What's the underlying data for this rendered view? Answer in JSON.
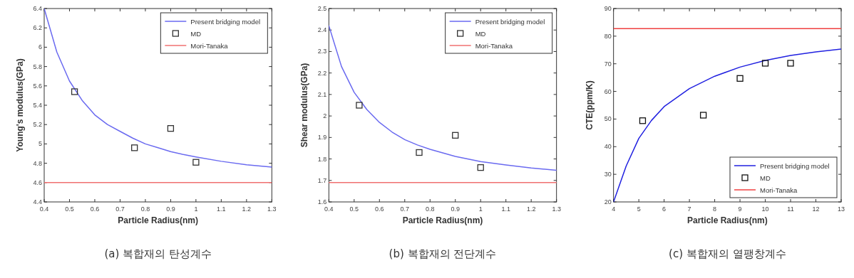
{
  "chart_data": [
    {
      "type": "line",
      "title": "(a) 복합재의 탄성계수",
      "xlabel": "Particle Radius(nm)",
      "ylabel": "Young's modulus(GPa)",
      "xlim": [
        0.4,
        1.3
      ],
      "ylim": [
        4.4,
        6.4
      ],
      "xticks": [
        0.4,
        0.5,
        0.6,
        0.7,
        0.8,
        0.9,
        1,
        1.1,
        1.2,
        1.3
      ],
      "yticks": [
        4.4,
        4.6,
        4.8,
        5,
        5.2,
        5.4,
        5.6,
        5.8,
        6,
        6.2,
        6.4
      ],
      "legend": "top right",
      "series": [
        {
          "name": "Present bridging model",
          "type": "line",
          "marker": "none",
          "color": "#6a6af0",
          "x": [
            0.4,
            0.45,
            0.5,
            0.55,
            0.6,
            0.65,
            0.7,
            0.75,
            0.8,
            0.85,
            0.9,
            0.95,
            1.0,
            1.1,
            1.2,
            1.3
          ],
          "values": [
            6.4,
            5.95,
            5.65,
            5.45,
            5.3,
            5.2,
            5.13,
            5.06,
            5.0,
            4.96,
            4.92,
            4.89,
            4.865,
            4.82,
            4.785,
            4.76
          ]
        },
        {
          "name": "MD",
          "type": "scatter",
          "marker": "square",
          "color": "#333333",
          "x": [
            0.52,
            0.757,
            0.9,
            1.0
          ],
          "values": [
            5.54,
            4.96,
            5.16,
            4.81
          ]
        },
        {
          "name": "Mori-Tanaka",
          "type": "line",
          "marker": "none",
          "color": "#f07070",
          "x": [
            0.4,
            1.3
          ],
          "values": [
            4.6,
            4.6
          ]
        }
      ]
    },
    {
      "type": "line",
      "title": "(b) 복합재의 전단계수",
      "xlabel": "Particle Radius(nm)",
      "ylabel": "Shear  modulus(GPa)",
      "xlim": [
        0.4,
        1.3
      ],
      "ylim": [
        1.6,
        2.5
      ],
      "xticks": [
        0.4,
        0.5,
        0.6,
        0.7,
        0.8,
        0.9,
        1,
        1.1,
        1.2,
        1.3
      ],
      "yticks": [
        1.6,
        1.7,
        1.8,
        1.9,
        2,
        2.1,
        2.2,
        2.3,
        2.4,
        2.5
      ],
      "legend": "top right",
      "series": [
        {
          "name": "Present bridging model",
          "type": "line",
          "marker": "none",
          "color": "#6a6af0",
          "x": [
            0.4,
            0.45,
            0.5,
            0.55,
            0.6,
            0.65,
            0.7,
            0.75,
            0.8,
            0.85,
            0.9,
            1.0,
            1.1,
            1.2,
            1.3
          ],
          "values": [
            2.42,
            2.23,
            2.11,
            2.03,
            1.97,
            1.925,
            1.89,
            1.865,
            1.845,
            1.828,
            1.812,
            1.788,
            1.772,
            1.758,
            1.747
          ]
        },
        {
          "name": "MD",
          "type": "scatter",
          "marker": "square",
          "color": "#333333",
          "x": [
            0.52,
            0.757,
            0.9,
            1.0
          ],
          "values": [
            2.05,
            1.83,
            1.91,
            1.76
          ]
        },
        {
          "name": "Mori-Tanaka",
          "type": "line",
          "marker": "none",
          "color": "#f07070",
          "x": [
            0.4,
            1.3
          ],
          "values": [
            1.69,
            1.69
          ]
        }
      ]
    },
    {
      "type": "line",
      "title": "(c) 복합재의 열팽창계수",
      "xlabel": "Particle Radius(nm)",
      "ylabel": "CTE(ppm/K)",
      "xlim": [
        4,
        13
      ],
      "ylim": [
        20,
        90
      ],
      "xticks": [
        4,
        5,
        6,
        7,
        8,
        9,
        10,
        11,
        12,
        13
      ],
      "yticks": [
        20,
        30,
        40,
        50,
        60,
        70,
        80,
        90
      ],
      "legend": "bottom right",
      "series": [
        {
          "name": "Present bridging model",
          "type": "line",
          "marker": "none",
          "color": "#2020e0",
          "x": [
            4,
            4.5,
            5,
            5.5,
            6,
            7,
            8,
            9,
            10,
            11,
            12,
            13
          ],
          "values": [
            20,
            33,
            43,
            49.5,
            54.5,
            61,
            65.5,
            68.8,
            71.2,
            73,
            74.3,
            75.3
          ]
        },
        {
          "name": "MD",
          "type": "scatter",
          "marker": "square",
          "color": "#111111",
          "x": [
            5.15,
            7.55,
            9,
            10,
            11
          ],
          "values": [
            49.4,
            51.4,
            64.7,
            70.2,
            70.2
          ]
        },
        {
          "name": "Mori-Tanaka",
          "type": "line",
          "marker": "none",
          "color": "#f04040",
          "x": [
            4,
            13
          ],
          "values": [
            82.7,
            82.7
          ]
        }
      ]
    }
  ]
}
